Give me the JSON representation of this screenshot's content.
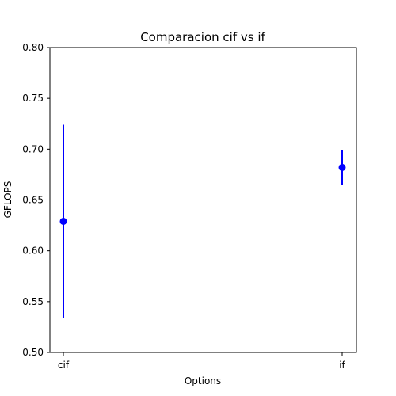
{
  "chart_data": {
    "type": "scatter",
    "title": "Comparacion cif vs if",
    "xlabel": "Options",
    "ylabel": "GFLOPS",
    "categories": [
      "cif",
      "if"
    ],
    "ylim": [
      0.5,
      0.8
    ],
    "yticks": [
      "0.50",
      "0.55",
      "0.60",
      "0.65",
      "0.70",
      "0.75",
      "0.80"
    ],
    "ytick_values": [
      0.5,
      0.55,
      0.6,
      0.65,
      0.7,
      0.75,
      0.8
    ],
    "series": [
      {
        "values": [
          0.629,
          0.682
        ],
        "error_low": [
          0.534,
          0.665
        ],
        "error_high": [
          0.724,
          0.699
        ],
        "color": "#0000ff"
      }
    ],
    "grid": false,
    "legend": "none"
  }
}
